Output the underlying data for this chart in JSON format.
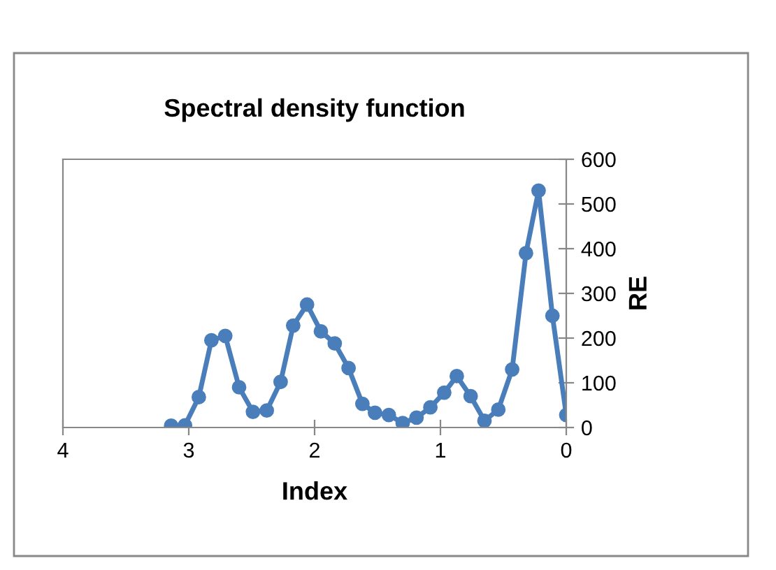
{
  "chart_data": {
    "type": "line",
    "title": "Spectral density function",
    "xlabel": "Index",
    "ylabel": "RE",
    "x": [
      3.14,
      3.03,
      2.92,
      2.82,
      2.71,
      2.6,
      2.49,
      2.38,
      2.27,
      2.17,
      2.06,
      1.95,
      1.84,
      1.73,
      1.62,
      1.52,
      1.41,
      1.3,
      1.19,
      1.08,
      0.97,
      0.87,
      0.76,
      0.65,
      0.54,
      0.43,
      0.32,
      0.22,
      0.11,
      0.0
    ],
    "series": [
      {
        "color": "#4a7ebb",
        "values": [
          4,
          5,
          68,
          195,
          205,
          90,
          35,
          38,
          102,
          228,
          275,
          215,
          188,
          133,
          53,
          33,
          28,
          10,
          22,
          45,
          78,
          115,
          70,
          15,
          40,
          130,
          390,
          530,
          250,
          28
        ]
      }
    ],
    "xlim": [
      4,
      0
    ],
    "xticks": [
      4,
      3,
      2,
      1,
      0
    ],
    "ylim": [
      0,
      600
    ],
    "yticks": [
      0,
      100,
      200,
      300,
      400,
      500,
      600
    ],
    "grid": false,
    "legend": false,
    "marker": "circle",
    "line_style": "solid"
  }
}
